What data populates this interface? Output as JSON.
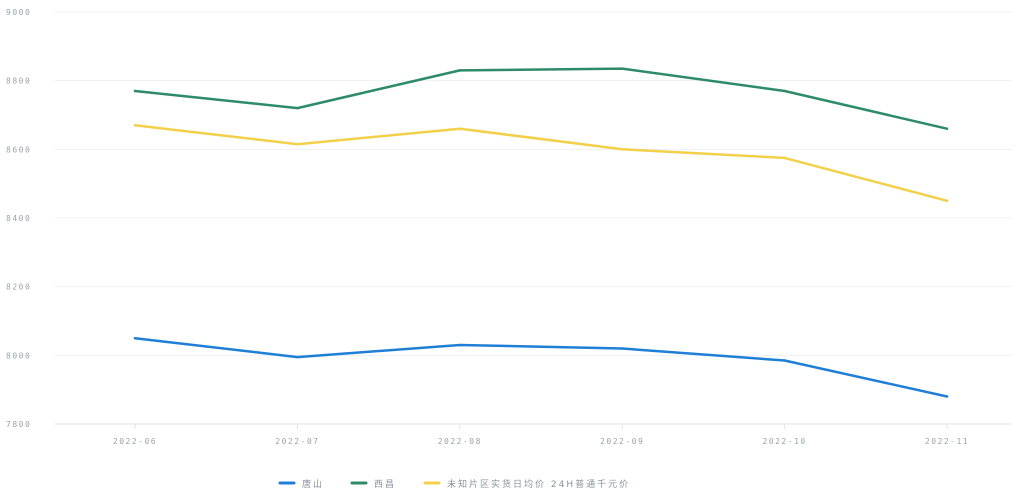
{
  "chart_data": {
    "type": "line",
    "categories": [
      "2022-06",
      "2022-07",
      "2022-08",
      "2022-09",
      "2022-10",
      "2022-11"
    ],
    "series": [
      {
        "name": "唐山",
        "color": "#1f7fd6",
        "values": [
          8050,
          7995,
          8030,
          8020,
          7985,
          7880
        ]
      },
      {
        "name": "西昌",
        "color": "#2e8b6a",
        "values": [
          8770,
          8720,
          8830,
          8835,
          8770,
          8660
        ]
      },
      {
        "name": "未知片区实货日均价 24H普通千元价",
        "color": "#f2d04a",
        "values": [
          8670,
          8615,
          8660,
          8600,
          8575,
          8450
        ]
      }
    ],
    "y_ticks": [
      "7800",
      "8000",
      "8200",
      "8400",
      "8600",
      "8800",
      "9000"
    ],
    "ylim": [
      7800,
      9000
    ],
    "grid": true,
    "legend_position": "bottom-center"
  }
}
